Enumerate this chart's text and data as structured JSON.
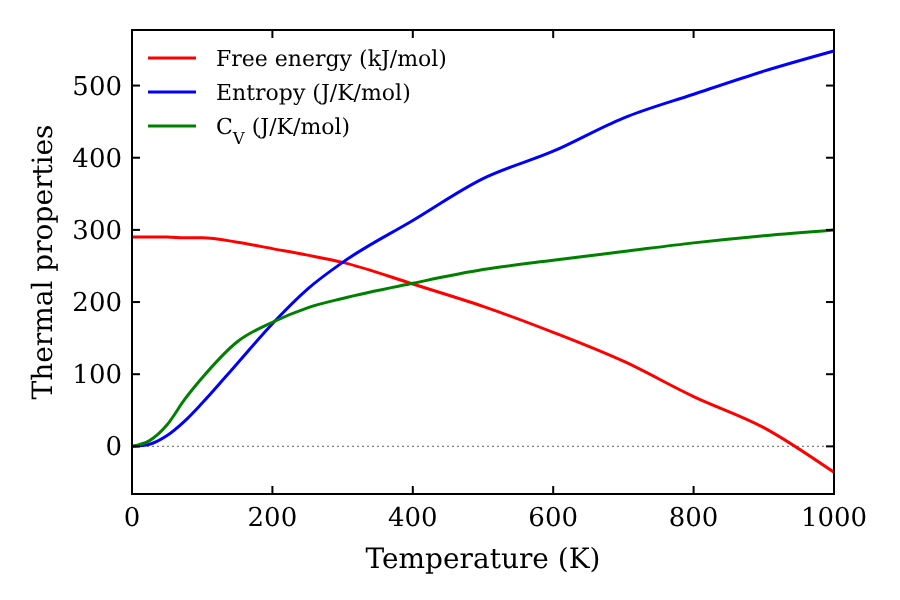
{
  "chart_data": {
    "type": "line",
    "xlabel": "Temperature (K)",
    "ylabel": "Thermal properties",
    "x": [
      0,
      25,
      50,
      75,
      100,
      150,
      200,
      250,
      300,
      400,
      500,
      600,
      700,
      800,
      900,
      1000
    ],
    "series": [
      {
        "name": "Free energy (kJ/mol)",
        "color": "#ff0000",
        "values": [
          290,
          290,
          290,
          289,
          289,
          283,
          274,
          265,
          255,
          225,
          194,
          158,
          118,
          69,
          26,
          -36
        ]
      },
      {
        "name": "Entropy (J/K/mol)",
        "color": "#0000ff",
        "values": [
          0,
          3,
          15,
          35,
          60,
          115,
          170,
          218,
          255,
          313,
          371,
          409,
          455,
          488,
          520,
          548
        ]
      },
      {
        "name": "C$_{V}$ (J/K/mol)",
        "color": "#008000",
        "values": [
          0,
          8,
          30,
          65,
          95,
          145,
          172,
          192,
          205,
          226,
          245,
          258,
          270,
          282,
          292,
          300
        ]
      }
    ],
    "xlim": [
      0,
      1000
    ],
    "xticks": [
      0,
      200,
      400,
      600,
      800,
      1000
    ],
    "ylim": [
      -66,
      577
    ],
    "yticks": [
      0,
      100,
      200,
      300,
      400,
      500
    ],
    "ref_lines": [
      {
        "axis": "y",
        "value": 0,
        "color": "#808080",
        "line_style": "dotted"
      }
    ],
    "legend": "top left",
    "grid": false
  }
}
